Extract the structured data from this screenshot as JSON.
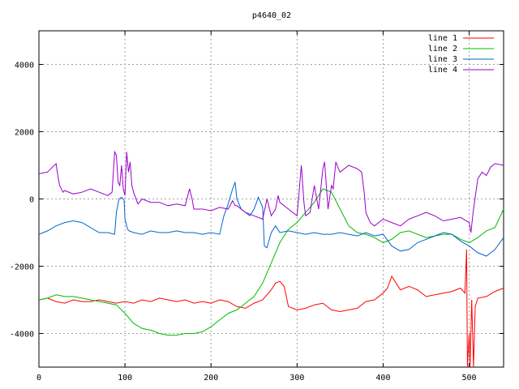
{
  "chart_data": {
    "type": "line",
    "title": "p4640_02",
    "xlabel": "",
    "ylabel": "",
    "xlim": [
      0,
      540
    ],
    "ylim": [
      -5000,
      5000
    ],
    "xticks": [
      0,
      100,
      200,
      300,
      400,
      500
    ],
    "yticks": [
      -4000,
      -2000,
      0,
      2000,
      4000
    ],
    "grid": true,
    "legend_position": "top-right",
    "series": [
      {
        "name": "line 1",
        "color": "#ff0000",
        "x": [
          0,
          10,
          20,
          30,
          40,
          50,
          60,
          70,
          80,
          90,
          100,
          110,
          120,
          130,
          140,
          150,
          160,
          170,
          180,
          190,
          200,
          210,
          220,
          230,
          240,
          250,
          260,
          270,
          275,
          280,
          285,
          290,
          300,
          310,
          320,
          330,
          340,
          350,
          360,
          370,
          380,
          390,
          400,
          405,
          410,
          415,
          420,
          430,
          440,
          450,
          460,
          470,
          480,
          490,
          495,
          497,
          498,
          500,
          501,
          503,
          505,
          507,
          510,
          520,
          530,
          540
        ],
        "y": [
          -3000,
          -2950,
          -3050,
          -3100,
          -3000,
          -3050,
          -3050,
          -3000,
          -3050,
          -3100,
          -3050,
          -3100,
          -3000,
          -3050,
          -2950,
          -3000,
          -3050,
          -3000,
          -3100,
          -3050,
          -3100,
          -3000,
          -3050,
          -3200,
          -3250,
          -3100,
          -3000,
          -2700,
          -2500,
          -2450,
          -2600,
          -3200,
          -3300,
          -3250,
          -3150,
          -3100,
          -3300,
          -3350,
          -3300,
          -3250,
          -3050,
          -3000,
          -2800,
          -2650,
          -2300,
          -2500,
          -2700,
          -2600,
          -2700,
          -2900,
          -2850,
          -2800,
          -2750,
          -2650,
          -2800,
          -1500,
          -5000,
          -4000,
          -5000,
          -3000,
          -5000,
          -3200,
          -2950,
          -2900,
          -2750,
          -2650
        ]
      },
      {
        "name": "line 2",
        "color": "#00bb00",
        "x": [
          0,
          10,
          20,
          30,
          40,
          50,
          60,
          70,
          80,
          90,
          100,
          110,
          120,
          130,
          140,
          150,
          160,
          170,
          180,
          190,
          200,
          210,
          220,
          230,
          240,
          250,
          260,
          270,
          280,
          290,
          300,
          310,
          320,
          330,
          340,
          350,
          360,
          370,
          380,
          390,
          400,
          410,
          420,
          430,
          440,
          450,
          460,
          470,
          480,
          490,
          500,
          510,
          520,
          530,
          540
        ],
        "y": [
          -3000,
          -2950,
          -2850,
          -2900,
          -2900,
          -2950,
          -3000,
          -3050,
          -3100,
          -3150,
          -3400,
          -3700,
          -3850,
          -3900,
          -4000,
          -4050,
          -4050,
          -4000,
          -4000,
          -3950,
          -3800,
          -3600,
          -3400,
          -3300,
          -3100,
          -2900,
          -2500,
          -1900,
          -1300,
          -900,
          -700,
          -400,
          -100,
          300,
          200,
          -300,
          -800,
          -1000,
          -1050,
          -1150,
          -1300,
          -1200,
          -1000,
          -950,
          -1050,
          -1150,
          -1100,
          -1050,
          -1050,
          -1200,
          -1300,
          -1150,
          -950,
          -850,
          -300
        ]
      },
      {
        "name": "line 3",
        "color": "#0066cc",
        "x": [
          0,
          10,
          20,
          30,
          40,
          50,
          60,
          70,
          80,
          88,
          90,
          93,
          96,
          99,
          100,
          103,
          105,
          110,
          120,
          130,
          140,
          150,
          160,
          170,
          180,
          190,
          200,
          210,
          215,
          220,
          225,
          228,
          230,
          235,
          240,
          245,
          250,
          255,
          260,
          262,
          265,
          270,
          275,
          280,
          290,
          300,
          310,
          320,
          330,
          340,
          350,
          360,
          370,
          380,
          390,
          400,
          410,
          420,
          430,
          440,
          450,
          460,
          470,
          480,
          490,
          500,
          510,
          520,
          530,
          540
        ],
        "y": [
          -1050,
          -950,
          -800,
          -700,
          -650,
          -700,
          -850,
          -1000,
          -1000,
          -1050,
          -400,
          0,
          50,
          -50,
          -600,
          -900,
          -950,
          -1000,
          -1050,
          -950,
          -1000,
          -1000,
          -950,
          -1000,
          -1000,
          -1050,
          -1000,
          -1050,
          -500,
          -150,
          300,
          500,
          0,
          -300,
          -400,
          -500,
          -300,
          50,
          -250,
          -1400,
          -1450,
          -1000,
          -800,
          -1000,
          -950,
          -1000,
          -1050,
          -1000,
          -1050,
          -1050,
          -1000,
          -1050,
          -1100,
          -1000,
          -1100,
          -1050,
          -1400,
          -1550,
          -1500,
          -1300,
          -1200,
          -1100,
          -1000,
          -1050,
          -1250,
          -1400,
          -1600,
          -1700,
          -1500,
          -1150
        ]
      },
      {
        "name": "line 4",
        "color": "#9900cc",
        "x": [
          0,
          10,
          20,
          22,
          24,
          28,
          30,
          40,
          50,
          60,
          70,
          80,
          85,
          88,
          90,
          92,
          94,
          96,
          98,
          100,
          102,
          104,
          106,
          108,
          110,
          115,
          120,
          130,
          140,
          150,
          160,
          170,
          175,
          178,
          180,
          190,
          200,
          210,
          220,
          225,
          228,
          230,
          240,
          250,
          260,
          265,
          270,
          275,
          278,
          280,
          290,
          300,
          305,
          308,
          310,
          315,
          320,
          325,
          330,
          332,
          334,
          336,
          340,
          342,
          345,
          348,
          350,
          360,
          370,
          375,
          378,
          380,
          385,
          390,
          400,
          410,
          420,
          430,
          440,
          450,
          460,
          470,
          480,
          490,
          500,
          502,
          505,
          510,
          515,
          520,
          525,
          530,
          540
        ],
        "y": [
          750,
          800,
          1050,
          700,
          400,
          200,
          250,
          150,
          200,
          300,
          200,
          100,
          200,
          1400,
          1300,
          500,
          400,
          1000,
          300,
          100,
          1400,
          800,
          1100,
          400,
          200,
          -150,
          0,
          -100,
          -100,
          -200,
          -150,
          -200,
          300,
          0,
          -300,
          -300,
          -350,
          -250,
          -300,
          -50,
          -200,
          -200,
          -400,
          -500,
          -600,
          0,
          -500,
          -300,
          100,
          -100,
          -300,
          -500,
          1000,
          -100,
          -500,
          -400,
          400,
          -300,
          900,
          1100,
          400,
          -300,
          400,
          300,
          1100,
          900,
          800,
          1000,
          900,
          800,
          200,
          -400,
          -700,
          -800,
          -600,
          -700,
          -800,
          -600,
          -500,
          -400,
          -500,
          -650,
          -600,
          -550,
          -700,
          -1000,
          -300,
          600,
          800,
          700,
          950,
          1050,
          1000
        ]
      }
    ]
  }
}
